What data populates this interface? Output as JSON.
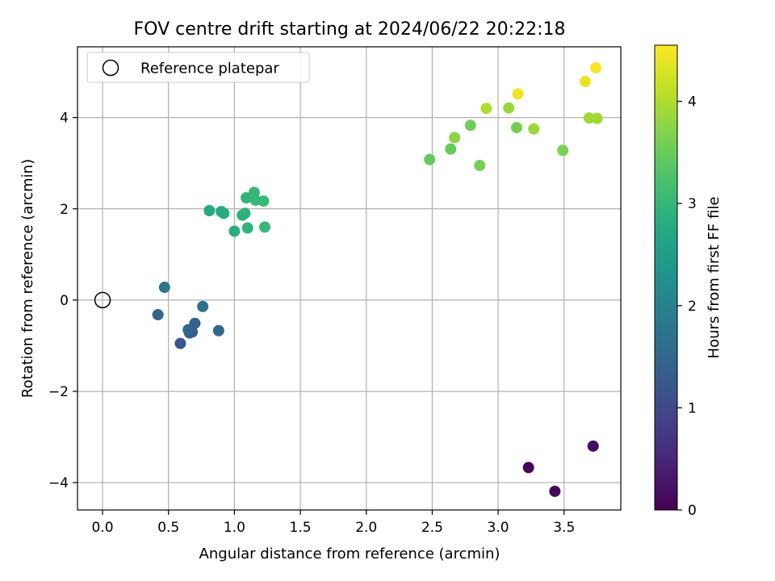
{
  "chart_data": {
    "type": "scatter",
    "title": "FOV centre drift starting at 2024/06/22 20:22:18",
    "xlabel": "Angular distance from reference (arcmin)",
    "ylabel": "Rotation from reference (arcmin)",
    "xlim": [
      -0.19,
      3.93
    ],
    "ylim": [
      -4.6,
      5.55
    ],
    "xticks": [
      0.0,
      0.5,
      1.0,
      1.5,
      2.0,
      2.5,
      3.0,
      3.5
    ],
    "xtick_labels": [
      "0.0",
      "0.5",
      "1.0",
      "1.5",
      "2.0",
      "2.5",
      "3.0",
      "3.5"
    ],
    "yticks": [
      -4,
      -2,
      0,
      2,
      4
    ],
    "ytick_labels": [
      "−4",
      "−2",
      "0",
      "2",
      "4"
    ],
    "grid": true,
    "legend": {
      "placement": "upper-left",
      "label": "Reference platepar"
    },
    "reference_point": {
      "x": 0.0,
      "y": 0.0
    },
    "colorbar": {
      "label": "Hours from first FF file",
      "range": [
        0,
        4.55
      ],
      "ticks": [
        0,
        1,
        2,
        3,
        4
      ],
      "tick_labels": [
        "0",
        "1",
        "2",
        "3",
        "4"
      ],
      "colormap": "viridis"
    },
    "points": [
      {
        "x": 3.23,
        "y": -3.67,
        "c": 0.05
      },
      {
        "x": 3.43,
        "y": -4.19,
        "c": 0.1
      },
      {
        "x": 3.72,
        "y": -3.2,
        "c": 0.15
      },
      {
        "x": 0.59,
        "y": -0.95,
        "c": 1.2
      },
      {
        "x": 0.66,
        "y": -0.72,
        "c": 1.3
      },
      {
        "x": 0.68,
        "y": -0.7,
        "c": 1.35
      },
      {
        "x": 0.7,
        "y": -0.51,
        "c": 1.4
      },
      {
        "x": 0.65,
        "y": -0.65,
        "c": 1.45
      },
      {
        "x": 0.42,
        "y": -0.32,
        "c": 1.5
      },
      {
        "x": 0.88,
        "y": -0.67,
        "c": 1.55
      },
      {
        "x": 0.76,
        "y": -0.14,
        "c": 1.65
      },
      {
        "x": 0.47,
        "y": 0.28,
        "c": 1.8
      },
      {
        "x": 0.81,
        "y": 1.96,
        "c": 2.75
      },
      {
        "x": 0.9,
        "y": 1.94,
        "c": 2.8
      },
      {
        "x": 0.92,
        "y": 1.9,
        "c": 2.8
      },
      {
        "x": 1.0,
        "y": 1.51,
        "c": 2.85
      },
      {
        "x": 1.06,
        "y": 1.86,
        "c": 2.9
      },
      {
        "x": 1.08,
        "y": 1.9,
        "c": 2.9
      },
      {
        "x": 1.1,
        "y": 1.58,
        "c": 2.95
      },
      {
        "x": 1.09,
        "y": 2.24,
        "c": 2.95
      },
      {
        "x": 1.15,
        "y": 2.36,
        "c": 3.0
      },
      {
        "x": 1.16,
        "y": 2.19,
        "c": 3.0
      },
      {
        "x": 1.22,
        "y": 2.17,
        "c": 3.05
      },
      {
        "x": 1.23,
        "y": 1.6,
        "c": 3.05
      },
      {
        "x": 2.48,
        "y": 3.08,
        "c": 3.45
      },
      {
        "x": 2.64,
        "y": 3.31,
        "c": 3.5
      },
      {
        "x": 2.67,
        "y": 3.56,
        "c": 3.75
      },
      {
        "x": 2.79,
        "y": 3.83,
        "c": 3.55
      },
      {
        "x": 2.86,
        "y": 2.95,
        "c": 3.6
      },
      {
        "x": 2.91,
        "y": 4.2,
        "c": 4.0
      },
      {
        "x": 3.08,
        "y": 4.21,
        "c": 3.85
      },
      {
        "x": 3.14,
        "y": 3.78,
        "c": 3.6
      },
      {
        "x": 3.15,
        "y": 4.52,
        "c": 4.45
      },
      {
        "x": 3.27,
        "y": 3.75,
        "c": 3.85
      },
      {
        "x": 3.49,
        "y": 3.28,
        "c": 3.65
      },
      {
        "x": 3.66,
        "y": 4.79,
        "c": 4.4
      },
      {
        "x": 3.69,
        "y": 3.99,
        "c": 3.9
      },
      {
        "x": 3.74,
        "y": 5.09,
        "c": 4.5
      },
      {
        "x": 3.75,
        "y": 3.98,
        "c": 3.9
      }
    ]
  }
}
